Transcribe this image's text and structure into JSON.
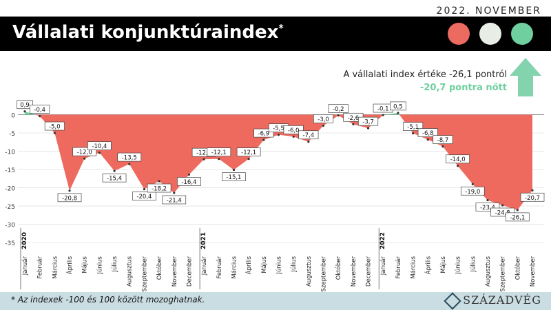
{
  "header": {
    "date": "2022. NOVEMBER",
    "title": "Vállalati konjunktúraindex",
    "title_mark": "*",
    "badge_colors": [
      "#ec6b60",
      "#e8eee5",
      "#6fcf9f"
    ]
  },
  "annotation": {
    "line1": "A vállalati index értéke -26,1 pontról",
    "line2": "-20,7 pontra nőtt",
    "arrow_icon": "up-arrow-icon",
    "arrow_color": "#82d3ae"
  },
  "footer": {
    "note": "* Az indexek -100 és 100 között mozoghatnak.",
    "brand": "SZÁZADVÉG",
    "brand_icon": "diamond-logo-icon"
  },
  "chart_data": {
    "type": "area",
    "x": [
      "Január",
      "Február",
      "Március",
      "Április",
      "Május",
      "Június",
      "Július",
      "Augusztus",
      "Szeptember",
      "Október",
      "November",
      "December",
      "Január",
      "Február",
      "Március",
      "Április",
      "Május",
      "Június",
      "Július",
      "Augusztus",
      "Szeptember",
      "Október",
      "November",
      "December",
      "Január",
      "Február",
      "Március",
      "Április",
      "Május",
      "Június",
      "Július",
      "Augusztus",
      "Szeptember",
      "Október",
      "November"
    ],
    "values": [
      0.9,
      -0.4,
      -5.0,
      -20.8,
      -12.0,
      -10.4,
      -15.4,
      -13.5,
      -20.4,
      -18.2,
      -21.4,
      -16.4,
      -12.2,
      -12.1,
      -15.1,
      -12.1,
      -6.9,
      -5.5,
      -6.0,
      -7.4,
      -3.0,
      -0.2,
      -2.6,
      -3.7,
      -0.1,
      0.5,
      -5.1,
      -6.8,
      -8.7,
      -14.0,
      -19.0,
      -23.4,
      -24.8,
      -26.1,
      -20.7
    ],
    "value_labels": [
      "0,9",
      "-0,4",
      "-5,0",
      "-20,8",
      "-12,0",
      "-10,4",
      "-15,4",
      "-13,5",
      "-20,4",
      "-18,2",
      "-21,4",
      "-16,4",
      "-12,2",
      "-12,1",
      "-15,1",
      "-12,1",
      "-6,9",
      "-5,5",
      "-6,0",
      "-7,4",
      "-3,0",
      "-0,2",
      "-2,6",
      "-3,7",
      "-0,1",
      "0,5",
      "-5,1",
      "-6,8",
      "-8,7",
      "-14,0",
      "-19,0",
      "-23,4",
      "-24,8",
      "-26,1",
      "-20,7"
    ],
    "years": [
      {
        "label": "2020",
        "start": 0
      },
      {
        "label": "2021",
        "start": 12
      },
      {
        "label": "2022",
        "start": 24
      }
    ],
    "ylim": [
      -38,
      5
    ],
    "yticks": [
      0,
      -5,
      -10,
      -15,
      -20,
      -25,
      -30,
      -35
    ],
    "ytick_labels": [
      "0",
      "-5",
      "-10",
      "-15",
      "-20",
      "-25",
      "-30",
      "-35"
    ],
    "grid": true,
    "negative_color": "#ee6a5f",
    "positive_color": "#6fcf9f"
  }
}
